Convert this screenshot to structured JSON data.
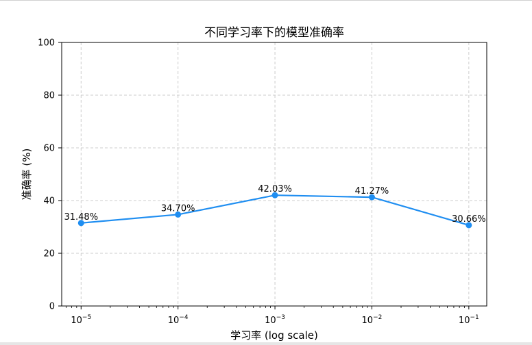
{
  "chart_data": {
    "type": "line",
    "title": "不同学习率下的模型准确率",
    "xlabel": "学习率 (log scale)",
    "ylabel": "准确率 (%)",
    "x_scale": "log",
    "x": [
      1e-05,
      0.0001,
      0.001,
      0.01,
      0.1
    ],
    "x_tick_labels": [
      {
        "base": "10",
        "exp": "−5"
      },
      {
        "base": "10",
        "exp": "−4"
      },
      {
        "base": "10",
        "exp": "−3"
      },
      {
        "base": "10",
        "exp": "−2"
      },
      {
        "base": "10",
        "exp": "−1"
      }
    ],
    "ylim": [
      0,
      100
    ],
    "y_ticks": [
      0,
      20,
      40,
      60,
      80,
      100
    ],
    "grid": true,
    "series": [
      {
        "values": [
          31.48,
          34.7,
          42.03,
          41.27,
          30.66
        ],
        "data_labels": [
          "31.48%",
          "34.70%",
          "42.03%",
          "41.27%",
          "30.66%"
        ],
        "color": "#1f8ef1"
      }
    ]
  }
}
